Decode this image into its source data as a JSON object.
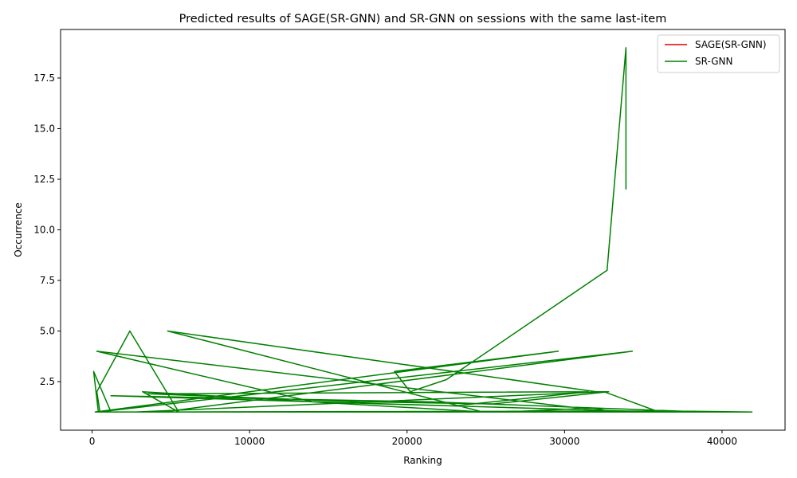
{
  "chart_data": {
    "type": "line",
    "title": "Predicted results of SAGE(SR-GNN) and SR-GNN on sessions with the same last-item",
    "xlabel": "Ranking",
    "ylabel": "Occurrence",
    "xlim": [
      -2000,
      44000
    ],
    "ylim": [
      0.1,
      19.9
    ],
    "xticks": [
      0,
      10000,
      20000,
      30000,
      40000
    ],
    "yticks": [
      2.5,
      5.0,
      7.5,
      10.0,
      12.5,
      15.0,
      17.5
    ],
    "xtick_labels": [
      "0",
      "10000",
      "20000",
      "30000",
      "40000"
    ],
    "ytick_labels": [
      "2.5",
      "5.0",
      "7.5",
      "10.0",
      "12.5",
      "15.0",
      "17.5"
    ],
    "legend_position": "upper right",
    "series": [
      {
        "name": "SAGE(SR-GNN)",
        "color": "#dd0000",
        "x": [],
        "y": []
      },
      {
        "name": "SR-GNN",
        "color": "#008000",
        "x": [
          33900,
          33900,
          32700,
          22500,
          20200,
          19200,
          29600,
          200,
          17800,
          400,
          500,
          300,
          2400,
          5500,
          3200,
          24800,
          4800,
          32000,
          32800,
          25500,
          17000,
          3500,
          31500,
          23000,
          1200,
          21500,
          38700,
          3000,
          29000,
          14200,
          6000,
          36500,
          41800,
          400,
          34300,
          4500,
          10000,
          41900,
          400,
          100,
          1200,
          2800,
          32500,
          36000,
          14000,
          300,
          33000,
          31800,
          26300,
          3400,
          33800,
          33900
        ],
        "y": [
          12,
          19,
          8,
          2.6,
          2,
          3,
          4,
          1,
          1,
          1,
          1,
          2,
          5,
          1,
          2,
          1,
          5,
          2,
          2,
          1.4,
          1.5,
          1.9,
          2,
          1.3,
          1.8,
          1.5,
          1,
          1,
          1,
          1,
          1,
          1.05,
          1,
          1,
          4,
          1,
          1,
          1,
          1,
          3,
          1,
          1,
          2,
          1,
          1.5,
          4,
          1,
          1.2,
          1,
          1,
          1,
          1
        ]
      }
    ]
  }
}
